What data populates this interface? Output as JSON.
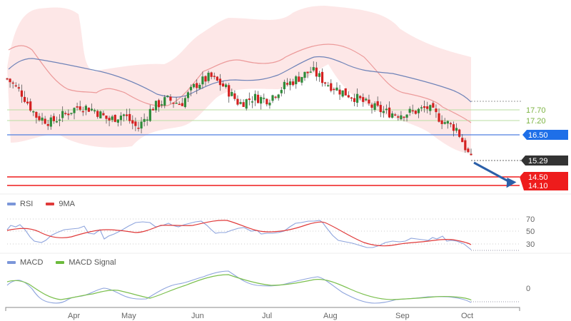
{
  "chart_data": [
    {
      "type": "candlestick",
      "title": "",
      "xlabel": "",
      "ylabel": "",
      "x_ticks": [
        "Apr",
        "May",
        "Jun",
        "Jul",
        "Aug",
        "Sep",
        "Oct"
      ],
      "overlays": [
        "Bollinger Bands (shaded)",
        "Moving average (red, 20)",
        "Moving average (blue, 50)"
      ],
      "price_levels": [
        {
          "label": "17.70",
          "value": 17.7,
          "color": "#7cb342",
          "kind": "resistance"
        },
        {
          "label": "17.20",
          "value": 17.2,
          "color": "#7cb342",
          "kind": "resistance"
        },
        {
          "label": "16.50",
          "value": 16.5,
          "color": "#1e6fe8",
          "kind": "pivot"
        },
        {
          "label": "15.29",
          "value": 15.29,
          "color": "#333333",
          "kind": "last price"
        },
        {
          "label": "14.50",
          "value": 14.5,
          "color": "#ee1c1c",
          "kind": "target"
        },
        {
          "label": "14.10",
          "value": 14.1,
          "color": "#ee1c1c",
          "kind": "target"
        }
      ],
      "annotation": "Blue arrow pointing down toward 14.50 / 14.10 targets",
      "approx_close_path": [
        19.2,
        18.5,
        17.4,
        17.1,
        17.5,
        17.9,
        17.7,
        17.2,
        17.5,
        16.8,
        17.8,
        18.2,
        18.0,
        18.9,
        19.3,
        18.8,
        18.0,
        18.3,
        18.2,
        18.8,
        19.2,
        19.6,
        19.0,
        18.6,
        18.3,
        17.9,
        17.6,
        17.5,
        17.6,
        17.8,
        17.2,
        16.8,
        15.29
      ]
    },
    {
      "type": "line",
      "title": "RSI",
      "legend": [
        "RSI",
        "9MA"
      ],
      "y_ticks": [
        70,
        50,
        30
      ],
      "ylim": [
        20,
        80
      ],
      "series": [
        {
          "name": "RSI",
          "color": "#7b96d9",
          "values": [
            58,
            62,
            52,
            38,
            32,
            45,
            44,
            40,
            36,
            48,
            56,
            54,
            60,
            68,
            66,
            45,
            44,
            46,
            58,
            66,
            70,
            45,
            36,
            30,
            26,
            36,
            35,
            40,
            38,
            33,
            22
          ]
        },
        {
          "name": "9MA",
          "color": "#e03a3a",
          "values": [
            52,
            54,
            51,
            46,
            42,
            44,
            45,
            43,
            40,
            44,
            50,
            52,
            56,
            62,
            63,
            55,
            48,
            47,
            52,
            60,
            66,
            58,
            46,
            36,
            30,
            32,
            34,
            36,
            37,
            36,
            30
          ]
        }
      ]
    },
    {
      "type": "line",
      "title": "MACD",
      "legend": [
        "MACD",
        "MACD Signal"
      ],
      "y_ticks": [
        0
      ],
      "series": [
        {
          "name": "MACD",
          "color": "#7b96d9",
          "values": [
            0.3,
            0.2,
            -0.5,
            -0.7,
            -0.4,
            -0.2,
            0.0,
            -0.2,
            -0.3,
            0.2,
            0.6,
            0.3,
            -0.1,
            0.0,
            0.15,
            -0.4,
            -0.7,
            -0.7,
            -0.5,
            -0.4,
            -0.45,
            -0.6
          ]
        },
        {
          "name": "MACD Signal",
          "color": "#6cbb3c",
          "values": [
            0.25,
            0.25,
            -0.1,
            -0.5,
            -0.45,
            -0.3,
            -0.1,
            -0.1,
            -0.2,
            0.0,
            0.4,
            0.35,
            0.05,
            -0.05,
            0.1,
            -0.2,
            -0.5,
            -0.65,
            -0.55,
            -0.45,
            -0.4,
            -0.55
          ]
        }
      ]
    }
  ],
  "labels": {
    "r1": "17.70",
    "r2": "17.20",
    "pivot": "16.50",
    "last": "15.29",
    "t1": "14.50",
    "t2": "14.10",
    "rsi_70": "70",
    "rsi_50": "50",
    "rsi_30": "30",
    "macd_0": "0"
  },
  "legends": {
    "rsi": [
      {
        "label": "RSI",
        "color": "#7b96d9"
      },
      {
        "label": "9MA",
        "color": "#e03a3a"
      }
    ],
    "macd": [
      {
        "label": "MACD",
        "color": "#7b96d9"
      },
      {
        "label": "MACD Signal",
        "color": "#6cbb3c"
      }
    ]
  },
  "x_axis": [
    "Apr",
    "May",
    "Jun",
    "Jul",
    "Aug",
    "Sep",
    "Oct"
  ]
}
